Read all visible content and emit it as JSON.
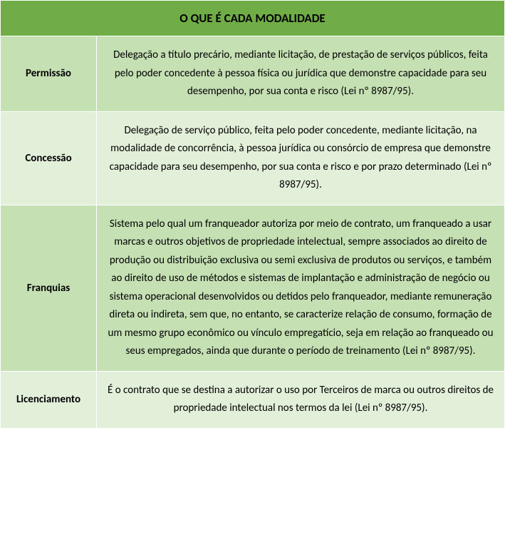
{
  "table": {
    "title": "O QUE É CADA MODALIDADE",
    "colors": {
      "header_bg": "#70ad47",
      "row_odd_bg": "#c5e0b3",
      "row_even_bg": "#e2efd9",
      "border": "#ffffff",
      "text": "#000000"
    },
    "fonts": {
      "header_size": 17,
      "label_size": 15,
      "desc_size": 15
    },
    "layout": {
      "label_col_width": 135,
      "total_width": 709
    },
    "rows": [
      {
        "label": "Permissão",
        "description": "Delegação a título precário, mediante licitação, de prestação de serviços públicos, feita pelo poder concedente à pessoa física ou jurídica que demonstre capacidade para seu desempenho, por sua conta e risco (Lei nº 8987/95)."
      },
      {
        "label": "Concessão",
        "description": "Delegação de serviço público, feita pelo poder concedente, mediante licitação, na modalidade de concorrência, à pessoa jurídica ou consórcio de empresa que demonstre capacidade para seu desempenho, por sua conta e risco e por prazo determinado (Lei nº 8987/95)."
      },
      {
        "label": "Franquias",
        "description": "Sistema pelo qual um franqueador autoriza por meio de contrato, um franqueado a usar marcas e outros objetivos de propriedade intelectual, sempre associados ao direito de produção ou distribuição exclusiva ou semi exclusiva de produtos ou serviços, e também ao direito de uso de métodos e sistemas de implantação e administração de negócio ou sistema operacional desenvolvidos ou detidos pelo franqueador, mediante remuneração direta ou indireta, sem que, no entanto, se caracterize relação de consumo, formação de um mesmo grupo econômico ou vínculo empregatício, seja em relação ao franqueado ou seus empregados, ainda que durante o período de treinamento (Lei nº 8987/95)."
      },
      {
        "label": "Licenciamento",
        "description": "É o contrato que se destina a autorizar o uso por Terceiros de marca ou outros direitos de propriedade intelectual nos termos da lei (Lei nº 8987/95)."
      }
    ]
  }
}
